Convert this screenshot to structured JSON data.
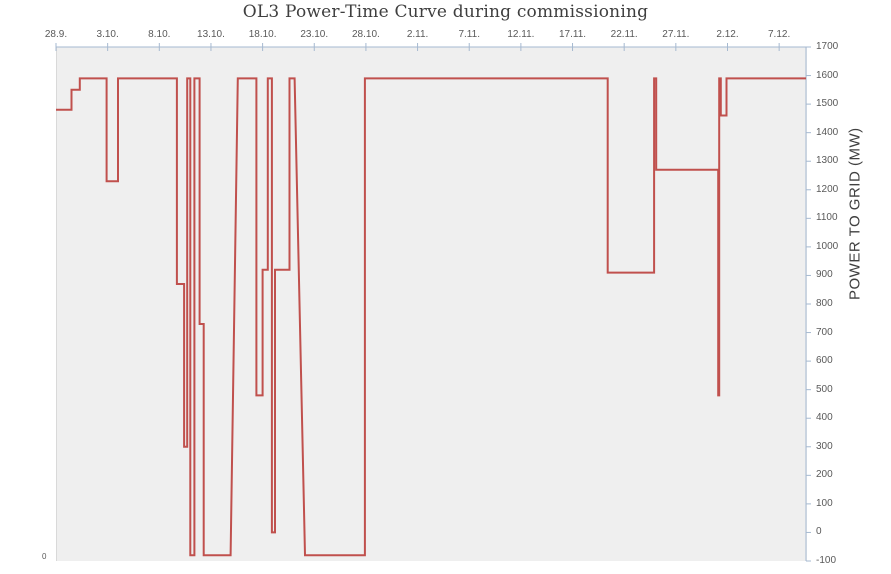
{
  "title": "OL3 Power-Time Curve during commissioning",
  "chart_data": {
    "type": "line",
    "title": "OL3 Power-Time Curve during commissioning",
    "plot_background": "#efefef",
    "axis_color": "#a6b9d0",
    "grid": "off",
    "legend": "none",
    "stray_label": "0",
    "x_axis": {
      "position": "top",
      "labels": [
        "28.9.",
        "3.10.",
        "8.10.",
        "13.10.",
        "18.10.",
        "23.10.",
        "28.10.",
        "2.11.",
        "7.11.",
        "12.11.",
        "17.11.",
        "22.11.",
        "27.11.",
        "2.12.",
        "7.12."
      ],
      "label_spacing_days": 5,
      "range_days": [
        0,
        72.6
      ],
      "tick_color": "#a6b9d0",
      "label_color": "#595959"
    },
    "y_axis": {
      "position": "right",
      "title": "POWER TO GRID (MW)",
      "min": -100,
      "max": 1700,
      "step": 100,
      "tick_labels": [
        "1700",
        "1600",
        "1500",
        "1400",
        "1300",
        "1200",
        "1100",
        "1000",
        "900",
        "800",
        "700",
        "600",
        "500",
        "400",
        "300",
        "200",
        "100",
        "0",
        "-100"
      ],
      "tick_color": "#a6b9d0",
      "label_color": "#595959"
    },
    "series": [
      {
        "name": "power-to-grid",
        "color": "#c0504d",
        "stroke_width": 2,
        "points_day_mw": [
          [
            0,
            1480
          ],
          [
            1.5,
            1480
          ],
          [
            1.5,
            1550
          ],
          [
            2.3,
            1550
          ],
          [
            2.3,
            1590
          ],
          [
            4.9,
            1590
          ],
          [
            4.9,
            1230
          ],
          [
            6.0,
            1230
          ],
          [
            6.0,
            1590
          ],
          [
            11.7,
            1590
          ],
          [
            11.7,
            870
          ],
          [
            12.4,
            870
          ],
          [
            12.4,
            300
          ],
          [
            12.7,
            300
          ],
          [
            12.7,
            1590
          ],
          [
            13.0,
            1590
          ],
          [
            13.0,
            -80
          ],
          [
            13.4,
            -80
          ],
          [
            13.4,
            1590
          ],
          [
            13.9,
            1590
          ],
          [
            13.9,
            730
          ],
          [
            14.3,
            730
          ],
          [
            14.3,
            -80
          ],
          [
            16.9,
            -80
          ],
          [
            17.6,
            1590
          ],
          [
            19.4,
            1590
          ],
          [
            19.4,
            480
          ],
          [
            20.0,
            480
          ],
          [
            20.0,
            920
          ],
          [
            20.5,
            920
          ],
          [
            20.5,
            1590
          ],
          [
            20.9,
            1590
          ],
          [
            20.9,
            0
          ],
          [
            21.2,
            0
          ],
          [
            21.2,
            920
          ],
          [
            22.6,
            920
          ],
          [
            22.6,
            1590
          ],
          [
            23.1,
            1590
          ],
          [
            24.1,
            -80
          ],
          [
            29.9,
            -80
          ],
          [
            29.9,
            1590
          ],
          [
            53.4,
            1590
          ],
          [
            53.4,
            910
          ],
          [
            57.9,
            910
          ],
          [
            57.9,
            1590
          ],
          [
            58.1,
            1590
          ],
          [
            58.1,
            1270
          ],
          [
            64.1,
            1270
          ],
          [
            64.1,
            480
          ],
          [
            64.2,
            480
          ],
          [
            64.2,
            1590
          ],
          [
            64.35,
            1590
          ],
          [
            64.35,
            1460
          ],
          [
            64.9,
            1460
          ],
          [
            64.9,
            1590
          ],
          [
            72.6,
            1590
          ]
        ]
      }
    ]
  }
}
